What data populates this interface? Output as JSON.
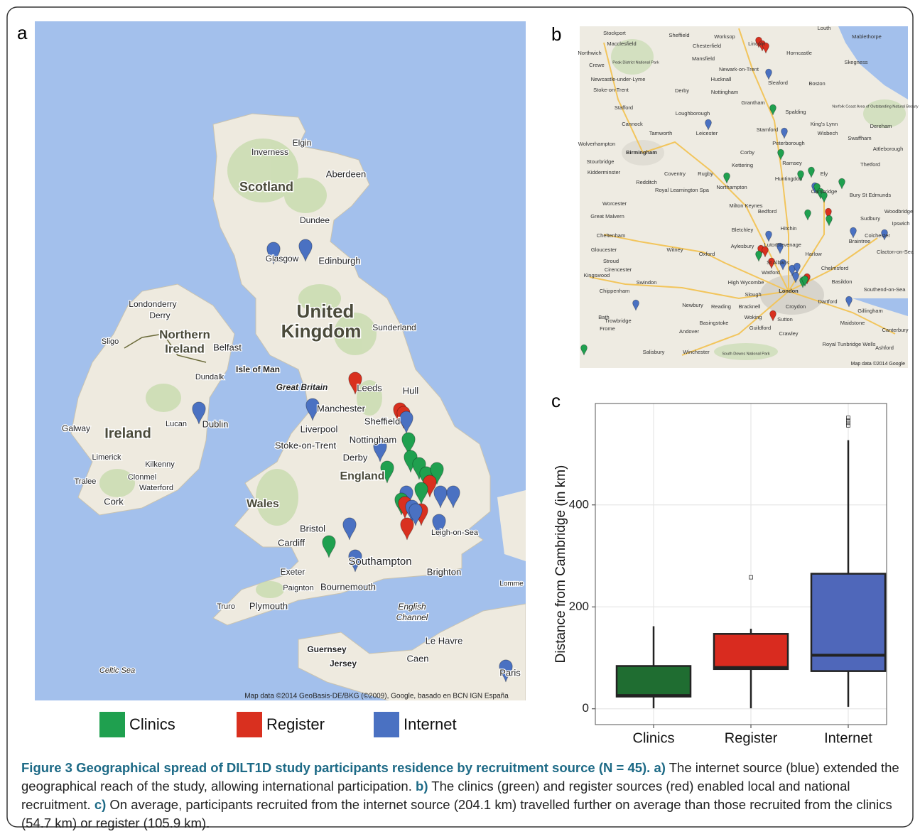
{
  "panel_labels": [
    "a",
    "b",
    "c"
  ],
  "map_a": {
    "labels": [
      "Scotland",
      "Aberdeen",
      "Inverness",
      "Elgin",
      "Dundee",
      "Glasgow",
      "Edinburgh",
      "United",
      "Kingdom",
      "Sunderland",
      "Londonderry",
      "Derry",
      "Northern",
      "Ireland",
      "Belfast",
      "Sligo",
      "Dundalk",
      "Isle of Man",
      "Great Britain",
      "Leeds",
      "Hull",
      "Manchester",
      "Galway",
      "Ireland",
      "Lucan",
      "Dublin",
      "Liverpool",
      "Sheffield",
      "Stoke-on-Trent",
      "Nottingham",
      "Derby",
      "Limerick",
      "Kilkenny",
      "Clonmel",
      "Tralee",
      "Waterford",
      "Cork",
      "England",
      "Wales",
      "Bristol",
      "Cardiff",
      "Leigh-on-Sea",
      "Exeter",
      "Paignton",
      "Bournemouth",
      "Southampton",
      "Brighton",
      "Truro",
      "Plymouth",
      "English",
      "Channel",
      "Le Havre",
      "Guernsey",
      "Jersey",
      "Caen",
      "Celtic Sea",
      "Paris",
      "Lomme"
    ],
    "attribution": "Map data ©2014 GeoBasis-DE/BKG (©2009), Google, basado en BCN IGN España"
  },
  "map_b": {
    "labels": [
      "Sheffield",
      "Stockport",
      "Macclesfield",
      "Chesterfield",
      "Mansfield",
      "Worksop",
      "Northwich",
      "Crewe",
      "Newcastle-under-Lyme",
      "Stoke-on-Trent",
      "Newark-on-Trent",
      "Lincoln",
      "Horncastle",
      "Louth",
      "Mablethorpe",
      "Skegness",
      "Boston",
      "Sleaford",
      "Hucknall",
      "Derby",
      "Nottingham",
      "Grantham",
      "Stafford",
      "Spalding",
      "Loughborough",
      "Cannock",
      "Stamford",
      "King's Lynn",
      "Wisbech",
      "Dereham",
      "Swaffham",
      "Attleborough",
      "Norfolk Coast Area of Outstanding Natural Beauty",
      "Tamworth",
      "Leicester",
      "Peterborough",
      "Wolverhampton",
      "Birmingham",
      "Stourbridge",
      "Kidderminster",
      "Corby",
      "Kettering",
      "Ramsey",
      "Coventry",
      "Rugby",
      "Redditch",
      "Huntingdon",
      "Ely",
      "Thetford",
      "Northampton",
      "Royal Leamington Spa",
      "Bury St Edmunds",
      "Cambridge",
      "Worcester",
      "Great Malvern",
      "Milton Keynes",
      "Bedford",
      "Sudbury",
      "Woodbridge",
      "Bletchley",
      "Hitchin",
      "Cheltenham",
      "Colchester",
      "Ipswich",
      "Gloucester",
      "Stroud",
      "Witney",
      "Oxford",
      "Aylesbury",
      "Stevenage",
      "Luton",
      "Braintree",
      "Clacton-on-Sea",
      "Cirencester",
      "Harlow",
      "St Albans",
      "Chelmsford",
      "Kingswood",
      "Swindon",
      "Watford",
      "High Wycombe",
      "Basildon",
      "Southend-on-Sea",
      "Chippenham",
      "Slough",
      "London",
      "Reading",
      "Bracknell",
      "Newbury",
      "Croydon",
      "Dartford",
      "Gillingham",
      "Bath",
      "Trowbridge",
      "Frome",
      "Basingstoke",
      "Woking",
      "Sutton",
      "Maidstone",
      "Canterbury",
      "Andover",
      "Guildford",
      "Royal Tunbridge Wells",
      "Ashford",
      "Crawley",
      "Salisbury",
      "Winchester",
      "South Downs National Park",
      "Peak District National Park"
    ],
    "attribution": "Map data ©2014 Google"
  },
  "legend": [
    {
      "name": "Clinics",
      "color": "#1fa04f"
    },
    {
      "name": "Register",
      "color": "#d9301f"
    },
    {
      "name": "Internet",
      "color": "#4a71c2"
    }
  ],
  "chart_data": {
    "type": "box",
    "ylabel": "Distance from Cambridge (in km)",
    "categories": [
      "Clinics",
      "Register",
      "Internet"
    ],
    "boxes": [
      {
        "min": 1,
        "q1": 24,
        "median": 26,
        "q3": 84,
        "max": 162,
        "outliers": [],
        "color": "#1f6d31"
      },
      {
        "min": 1,
        "q1": 78,
        "median": 81,
        "q3": 147,
        "max": 157,
        "outliers": [
          258
        ],
        "color": "#d92b1f"
      },
      {
        "min": 4,
        "q1": 74,
        "median": 105,
        "q3": 265,
        "max": 527,
        "outliers": [
          556,
          561,
          566,
          571
        ],
        "color": "#4f67ba"
      }
    ],
    "ylim": [
      -31,
      599
    ],
    "yticks": [
      0,
      200,
      400
    ],
    "grid": true
  },
  "caption": {
    "title": "Figure 3 Geographical spread of DILT1D study participants residence by recruitment source (N = 45).",
    "parts": [
      {
        "label": "a)",
        "text": "The internet source (blue) extended the geographical reach of the study, allowing international participation."
      },
      {
        "label": "b)",
        "text": "The clinics (green) and register sources (red) enabled local and national recruitment."
      },
      {
        "label": "c)",
        "text": "On average, participants recruited from the internet source (204.1 km) travelled further on average than those recruited from the clinics (54.7 km) or register (105.9 km)."
      }
    ]
  }
}
